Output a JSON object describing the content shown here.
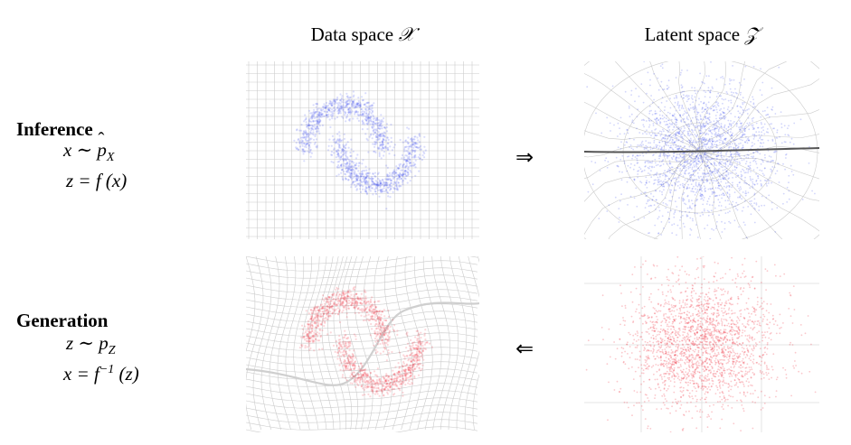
{
  "header": {
    "data_label": "Data space",
    "data_symbol": "𝒳",
    "latent_label": "Latent space",
    "latent_symbol": "𝒵"
  },
  "inference": {
    "title": "Inference",
    "eq1": "x ∼ p̂X",
    "eq2": "z = f (x)",
    "arrow": "⇒"
  },
  "generation": {
    "title": "Generation",
    "eq1": "z ∼ pZ",
    "eq2": "x = f⁻¹ (z)",
    "arrow": "⇐"
  },
  "colors": {
    "inference_points": "#3344ee",
    "generation_points": "#ee2233",
    "grid": "#bbbbbb"
  }
}
